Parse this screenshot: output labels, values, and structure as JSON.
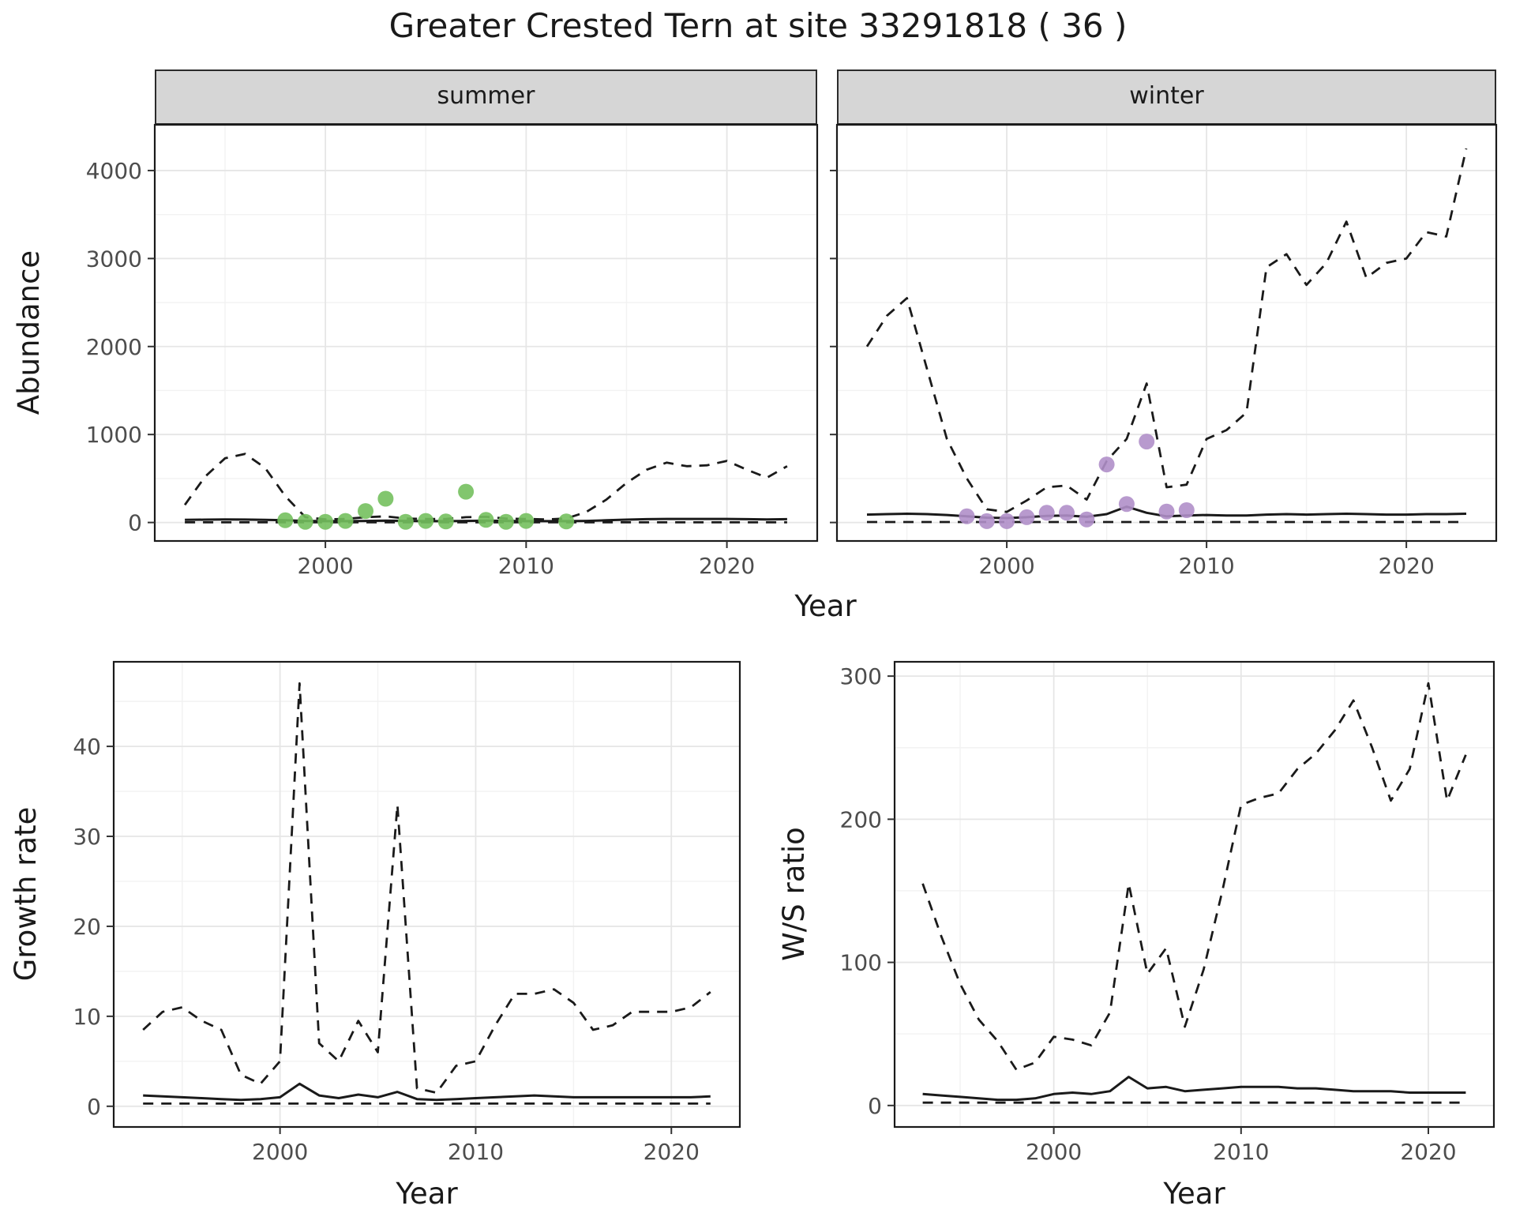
{
  "title": "Greater Crested Tern at site 33291818 ( 36 )",
  "facets": {
    "summer": "summer",
    "winter": "winter"
  },
  "axes": {
    "abundance": "Abundance",
    "year": "Year",
    "growth_rate": "Growth rate",
    "ws_ratio": "W/S ratio"
  },
  "colors": {
    "line": "#1a1a1a",
    "summer_points": "#74c05e",
    "winter_points": "#b08fc9",
    "strip_bg": "#d6d6d6",
    "grid_major": "#e6e6e6",
    "grid_minor": "#f2f2f2",
    "panel_border": "#1a1a1a",
    "tick_text": "#4d4d4d"
  },
  "chart_data": [
    {
      "id": "abundance-summer",
      "type": "line",
      "facet": "summer",
      "xlabel": "Year",
      "ylabel": "Abundance",
      "xlim": [
        1991.5,
        2024.5
      ],
      "ylim": [
        -210,
        4520
      ],
      "xticks": [
        2000,
        2010,
        2020
      ],
      "yticks": [
        0,
        1000,
        2000,
        3000,
        4000
      ],
      "xticks_minor": [
        1995,
        2005,
        2015
      ],
      "yticks_minor": [
        500,
        1500,
        2500,
        3500
      ],
      "show_y_tick_labels": true,
      "x": [
        1993,
        1994,
        1995,
        1996,
        1997,
        1998,
        1999,
        2000,
        2001,
        2002,
        2003,
        2004,
        2005,
        2006,
        2007,
        2008,
        2009,
        2010,
        2011,
        2012,
        2013,
        2014,
        2015,
        2016,
        2017,
        2018,
        2019,
        2020,
        2021,
        2022,
        2023
      ],
      "series": [
        {
          "name": "upper-ci",
          "style": "dashed",
          "values": [
            200,
            520,
            730,
            780,
            620,
            300,
            60,
            35,
            40,
            60,
            70,
            45,
            40,
            40,
            60,
            65,
            45,
            40,
            35,
            45,
            120,
            260,
            450,
            600,
            680,
            640,
            650,
            700,
            600,
            510,
            640
          ]
        },
        {
          "name": "median",
          "style": "solid",
          "values": [
            30,
            32,
            35,
            33,
            30,
            25,
            18,
            15,
            15,
            18,
            22,
            18,
            15,
            15,
            18,
            22,
            18,
            15,
            15,
            15,
            18,
            25,
            32,
            38,
            40,
            40,
            40,
            40,
            38,
            35,
            38
          ]
        },
        {
          "name": "lower-ci",
          "style": "dashed",
          "values": [
            2,
            2,
            2,
            2,
            2,
            2,
            2,
            2,
            2,
            2,
            2,
            2,
            2,
            2,
            2,
            2,
            2,
            2,
            2,
            2,
            2,
            2,
            2,
            2,
            2,
            2,
            2,
            2,
            2,
            2,
            2
          ]
        }
      ],
      "points": {
        "name": "observed-counts",
        "color_key": "summer_points",
        "x": [
          1998,
          1999,
          2000,
          2001,
          2002,
          2003,
          2004,
          2005,
          2006,
          2007,
          2008,
          2009,
          2010,
          2012
        ],
        "y": [
          25,
          8,
          8,
          18,
          130,
          270,
          8,
          18,
          12,
          350,
          30,
          8,
          18,
          12
        ]
      }
    },
    {
      "id": "abundance-winter",
      "type": "line",
      "facet": "winter",
      "xlabel": "Year",
      "ylabel": "Abundance",
      "xlim": [
        1991.5,
        2024.5
      ],
      "ylim": [
        -210,
        4520
      ],
      "xticks": [
        2000,
        2010,
        2020
      ],
      "yticks": [
        0,
        1000,
        2000,
        3000,
        4000
      ],
      "xticks_minor": [
        1995,
        2005,
        2015
      ],
      "yticks_minor": [
        500,
        1500,
        2500,
        3500
      ],
      "show_y_tick_labels": false,
      "x": [
        1993,
        1994,
        1995,
        1996,
        1997,
        1998,
        1999,
        2000,
        2001,
        2002,
        2003,
        2004,
        2005,
        2006,
        2007,
        2008,
        2009,
        2010,
        2011,
        2012,
        2013,
        2014,
        2015,
        2016,
        2017,
        2018,
        2019,
        2020,
        2021,
        2022,
        2023
      ],
      "series": [
        {
          "name": "upper-ci",
          "style": "dashed",
          "values": [
            2000,
            2350,
            2550,
            1750,
            950,
            500,
            150,
            120,
            250,
            400,
            420,
            260,
            700,
            950,
            1580,
            400,
            430,
            950,
            1050,
            1250,
            2900,
            3050,
            2700,
            2950,
            3420,
            2780,
            2950,
            3000,
            3300,
            3250,
            4250
          ]
        },
        {
          "name": "median",
          "style": "solid",
          "values": [
            90,
            95,
            100,
            95,
            85,
            70,
            55,
            50,
            60,
            75,
            80,
            65,
            95,
            180,
            110,
            70,
            80,
            85,
            80,
            80,
            90,
            95,
            90,
            95,
            100,
            95,
            90,
            90,
            95,
            95,
            100
          ]
        },
        {
          "name": "lower-ci",
          "style": "dashed",
          "values": [
            5,
            5,
            5,
            5,
            5,
            5,
            5,
            5,
            5,
            5,
            5,
            5,
            5,
            5,
            5,
            5,
            5,
            5,
            5,
            5,
            5,
            5,
            5,
            5,
            5,
            5,
            5,
            5,
            5,
            5,
            5
          ]
        }
      ],
      "points": {
        "name": "observed-counts",
        "color_key": "winter_points",
        "x": [
          1998,
          1999,
          2000,
          2001,
          2002,
          2003,
          2004,
          2005,
          2006,
          2007,
          2008,
          2009
        ],
        "y": [
          70,
          15,
          15,
          60,
          110,
          110,
          35,
          660,
          210,
          920,
          125,
          140
        ]
      }
    },
    {
      "id": "growth-rate",
      "type": "line",
      "xlabel": "Year",
      "ylabel": "Growth rate",
      "xlim": [
        1991.5,
        2023.5
      ],
      "ylim": [
        -2.3,
        49.4
      ],
      "xticks": [
        2000,
        2010,
        2020
      ],
      "yticks": [
        0,
        10,
        20,
        30,
        40
      ],
      "xticks_minor": [
        1995,
        2005,
        2015
      ],
      "yticks_minor": [
        5,
        15,
        25,
        35,
        45
      ],
      "show_y_tick_labels": true,
      "x": [
        1993,
        1994,
        1995,
        1996,
        1997,
        1998,
        1999,
        2000,
        2001,
        2002,
        2003,
        2004,
        2005,
        2006,
        2007,
        2008,
        2009,
        2010,
        2011,
        2012,
        2013,
        2014,
        2015,
        2016,
        2017,
        2018,
        2019,
        2020,
        2021,
        2022
      ],
      "series": [
        {
          "name": "upper-ci",
          "style": "dashed",
          "values": [
            8.5,
            10.5,
            11,
            9.5,
            8.5,
            3.5,
            2.5,
            5,
            47,
            7,
            5,
            9.5,
            6,
            33.5,
            2,
            1.5,
            4.5,
            5,
            9,
            12.5,
            12.5,
            13,
            11.5,
            8.5,
            9,
            10.5,
            10.5,
            10.5,
            11,
            12.7
          ]
        },
        {
          "name": "median",
          "style": "solid",
          "values": [
            1.2,
            1.1,
            1,
            0.9,
            0.8,
            0.7,
            0.8,
            1,
            2.5,
            1.2,
            0.9,
            1.3,
            1,
            1.6,
            0.8,
            0.7,
            0.8,
            0.9,
            1,
            1.1,
            1.2,
            1.1,
            1,
            1,
            1,
            1,
            1,
            1,
            1,
            1.1
          ]
        },
        {
          "name": "lower-ci",
          "style": "dashed",
          "values": [
            0.3,
            0.3,
            0.3,
            0.3,
            0.3,
            0.3,
            0.3,
            0.3,
            0.3,
            0.3,
            0.3,
            0.3,
            0.3,
            0.3,
            0.3,
            0.3,
            0.3,
            0.3,
            0.3,
            0.3,
            0.3,
            0.3,
            0.3,
            0.3,
            0.3,
            0.3,
            0.3,
            0.3,
            0.3,
            0.3
          ]
        }
      ]
    },
    {
      "id": "ws-ratio",
      "type": "line",
      "xlabel": "Year",
      "ylabel": "W/S ratio",
      "xlim": [
        1991.5,
        2023.5
      ],
      "ylim": [
        -15,
        310
      ],
      "xticks": [
        2000,
        2010,
        2020
      ],
      "yticks": [
        0,
        100,
        200,
        300
      ],
      "xticks_minor": [
        1995,
        2005,
        2015
      ],
      "yticks_minor": [
        50,
        150,
        250
      ],
      "show_y_tick_labels": true,
      "x": [
        1993,
        1994,
        1995,
        1996,
        1997,
        1998,
        1999,
        2000,
        2001,
        2002,
        2003,
        2004,
        2005,
        2006,
        2007,
        2008,
        2009,
        2010,
        2011,
        2012,
        2013,
        2014,
        2015,
        2016,
        2017,
        2018,
        2019,
        2020,
        2021,
        2022
      ],
      "series": [
        {
          "name": "upper-ci",
          "style": "dashed",
          "values": [
            155,
            118,
            85,
            60,
            45,
            25,
            30,
            48,
            46,
            42,
            65,
            155,
            92,
            110,
            55,
            95,
            150,
            210,
            215,
            218,
            235,
            246,
            262,
            283,
            250,
            213,
            235,
            295,
            213,
            245
          ]
        },
        {
          "name": "median",
          "style": "solid",
          "values": [
            8,
            7,
            6,
            5,
            4,
            4,
            5,
            8,
            9,
            8,
            10,
            20,
            12,
            13,
            10,
            11,
            12,
            13,
            13,
            13,
            12,
            12,
            11,
            10,
            10,
            10,
            9,
            9,
            9,
            9
          ]
        },
        {
          "name": "lower-ci",
          "style": "dashed",
          "values": [
            2,
            2,
            2,
            2,
            2,
            2,
            2,
            2,
            2,
            2,
            2,
            2,
            2,
            2,
            2,
            2,
            2,
            2,
            2,
            2,
            2,
            2,
            2,
            2,
            2,
            2,
            2,
            2,
            2,
            2
          ]
        }
      ]
    }
  ]
}
